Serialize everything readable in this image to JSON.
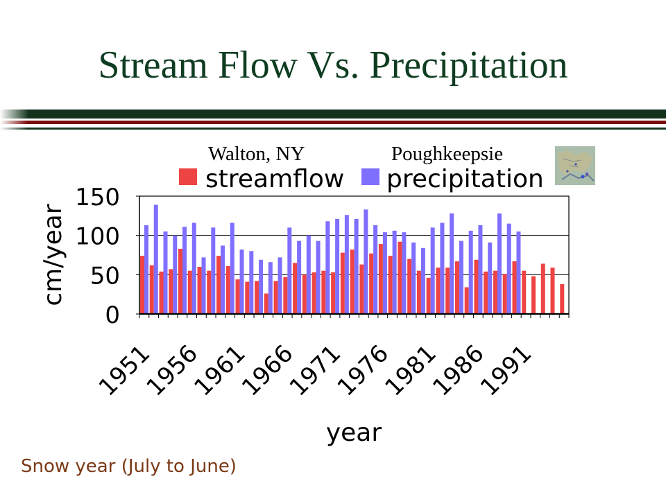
{
  "slide": {
    "title": "Stream Flow Vs. Precipitation",
    "note": "Snow year (July to June)"
  },
  "chart_data": {
    "type": "bar",
    "title": "",
    "xlabel": "year",
    "ylabel": "cm/year",
    "ylim": [
      0,
      150
    ],
    "yticks": [
      0,
      50,
      100,
      150
    ],
    "grid": "horizontal",
    "legend_placement": "top",
    "location_labels": [
      "Walton, NY",
      "Poughkeepsie"
    ],
    "categories": [
      1951,
      1952,
      1953,
      1954,
      1955,
      1956,
      1957,
      1958,
      1959,
      1960,
      1961,
      1962,
      1963,
      1964,
      1965,
      1966,
      1967,
      1968,
      1969,
      1970,
      1971,
      1972,
      1973,
      1974,
      1975,
      1976,
      1977,
      1978,
      1979,
      1980,
      1981,
      1982,
      1983,
      1984,
      1985,
      1986,
      1987,
      1988,
      1989,
      1990,
      1991,
      1992,
      1993,
      1994,
      1995
    ],
    "xtick_labels": [
      "1951",
      "1956",
      "1961",
      "1966",
      "1971",
      "1976",
      "1981",
      "1986",
      "1991"
    ],
    "series": [
      {
        "name": "streamflow",
        "color": "#ee4444",
        "values": [
          74,
          62,
          54,
          57,
          83,
          55,
          60,
          55,
          74,
          61,
          44,
          41,
          42,
          26,
          42,
          47,
          65,
          50,
          53,
          55,
          53,
          78,
          82,
          63,
          77,
          89,
          74,
          92,
          70,
          55,
          46,
          59,
          59,
          67,
          34,
          69,
          54,
          55,
          51,
          67,
          55,
          48,
          64,
          59,
          38
        ]
      },
      {
        "name": "precipitation",
        "color": "#7f6fff",
        "values": [
          113,
          139,
          105,
          100,
          111,
          116,
          72,
          110,
          87,
          116,
          82,
          80,
          69,
          66,
          72,
          110,
          93,
          100,
          93,
          118,
          121,
          126,
          121,
          133,
          113,
          104,
          106,
          104,
          91,
          84,
          110,
          116,
          128,
          93,
          106,
          113,
          91,
          128,
          115,
          105,
          null,
          null,
          null,
          null,
          null
        ]
      }
    ]
  }
}
